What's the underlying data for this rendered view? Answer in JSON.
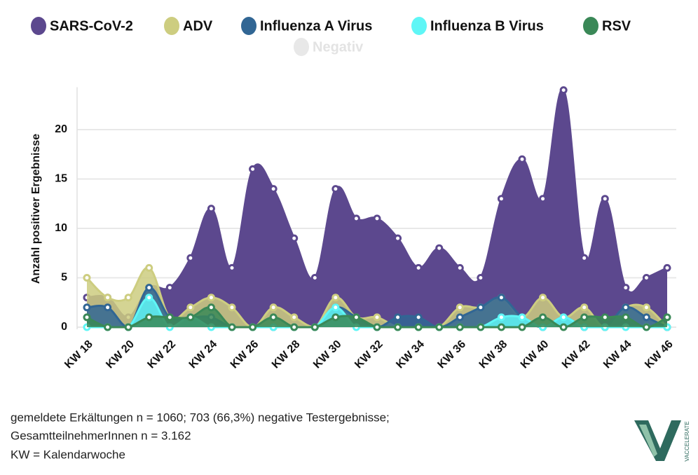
{
  "chart_data": {
    "type": "area",
    "ylabel": "Anzahl positiver Ergebnisse",
    "categories": [
      "KW 18",
      null,
      "KW 20",
      null,
      "KW 22",
      null,
      "KW 24",
      null,
      "KW 26",
      null,
      "KW 28",
      null,
      "KW 30",
      null,
      "KW 32",
      null,
      "KW 34",
      null,
      "KW 36",
      null,
      "KW 38",
      null,
      "KW 40",
      null,
      "KW 42",
      null,
      "KW 44",
      null,
      "KW 46"
    ],
    "series": [
      {
        "name": "SARS-CoV-2",
        "color": "#5c488e",
        "values": [
          3,
          3,
          1,
          4,
          4,
          7,
          12,
          6,
          16,
          14,
          9,
          5,
          14,
          11,
          11,
          9,
          6,
          8,
          6,
          5,
          13,
          17,
          13,
          24,
          7,
          13,
          4,
          5,
          6
        ]
      },
      {
        "name": "ADV",
        "color": "#cdcd80",
        "values": [
          5,
          3,
          3,
          6,
          1,
          2,
          3,
          2,
          0,
          2,
          1,
          0,
          3,
          1,
          1,
          0,
          0,
          0,
          2,
          2,
          3,
          1,
          3,
          1,
          2,
          0,
          2,
          2,
          0
        ]
      },
      {
        "name": "Influenza A Virus",
        "color": "#316694",
        "values": [
          2,
          2,
          0,
          4,
          1,
          1,
          1,
          0,
          0,
          0,
          0,
          0,
          2,
          1,
          0,
          1,
          1,
          0,
          1,
          2,
          3,
          1,
          0,
          1,
          0,
          0,
          2,
          1,
          0
        ]
      },
      {
        "name": "Influenza B Virus",
        "color": "#5ff6f6",
        "values": [
          0,
          0,
          0,
          3,
          0,
          1,
          0,
          0,
          0,
          0,
          0,
          0,
          2,
          0,
          0,
          0,
          0,
          0,
          0,
          0,
          1,
          1,
          0,
          1,
          0,
          0,
          0,
          0,
          0
        ]
      },
      {
        "name": "RSV",
        "color": "#3a8857",
        "values": [
          1,
          0,
          0,
          1,
          1,
          1,
          2,
          0,
          0,
          1,
          0,
          0,
          1,
          1,
          0,
          0,
          0,
          0,
          0,
          0,
          0,
          0,
          1,
          0,
          1,
          1,
          1,
          0,
          1
        ]
      },
      {
        "name": "Negativ",
        "color": "#e8e8e8",
        "hidden": true
      }
    ],
    "ylim": [
      0,
      25
    ],
    "yticks": [
      0,
      5,
      10,
      15,
      20
    ],
    "grid": true
  },
  "footnote": [
    "gemeldete Erkältungen n = 1060; 703 (66,3%) negative Testergebnisse;",
    "GesamtteilnehmerInnen n = 3.162",
    "KW = Kalendarwoche"
  ],
  "logo": "VACCELERATE"
}
